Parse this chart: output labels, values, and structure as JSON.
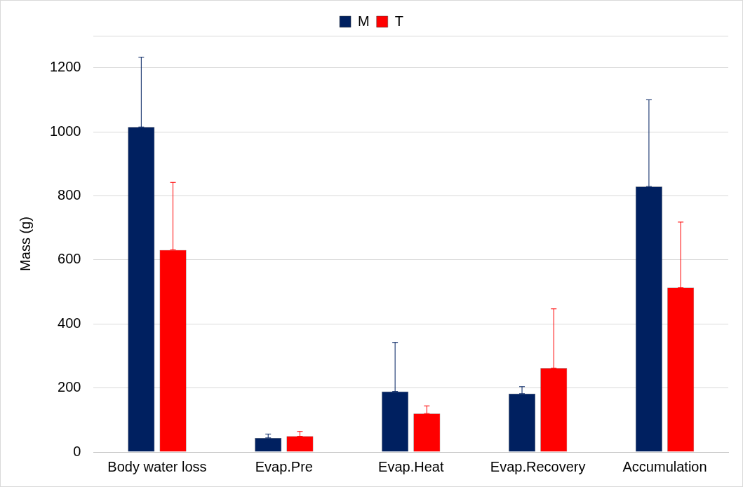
{
  "chart_data": {
    "type": "bar",
    "ylabel": "Mass (g)",
    "categories": [
      "Body water loss",
      "Evap.Pre",
      "Evap.Heat",
      "Evap.Recovery",
      "Accumulation"
    ],
    "series": [
      {
        "name": "M",
        "color": "#002060",
        "values": [
          1015,
          44,
          189,
          182,
          829
        ],
        "errors": [
          [
            1015,
            1233
          ],
          [
            44,
            56
          ],
          [
            189,
            342
          ],
          [
            182,
            204
          ],
          [
            829,
            1100
          ]
        ]
      },
      {
        "name": "T",
        "color": "#ff0000",
        "values": [
          631,
          49,
          120,
          262,
          513
        ],
        "errors": [
          [
            631,
            842
          ],
          [
            49,
            64
          ],
          [
            120,
            144
          ],
          [
            262,
            447
          ],
          [
            513,
            718
          ]
        ]
      }
    ],
    "ylim": [
      0,
      1300
    ],
    "yticks": [
      0,
      200,
      400,
      600,
      800,
      1000,
      1200,
      {
        "value": 1300,
        "label": null
      }
    ],
    "grid": "y",
    "legend": "top"
  }
}
